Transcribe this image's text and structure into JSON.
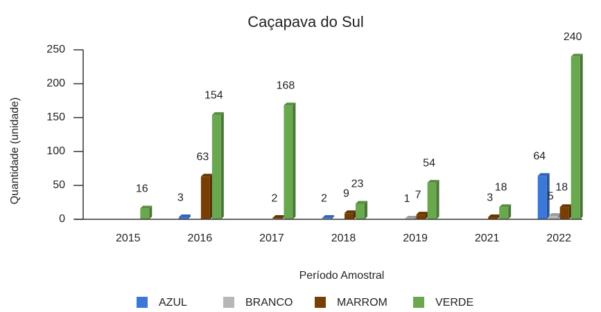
{
  "chart_data": {
    "type": "bar",
    "title": "Caçapava do Sul",
    "x_label": "Período Amostral",
    "y_label": "Quantidade (unidade)",
    "categories": [
      "2015",
      "2016",
      "2017",
      "2018",
      "2019",
      "2021",
      "2022"
    ],
    "series": [
      {
        "name": "AZUL",
        "color": "#3c78d8",
        "values": [
          null,
          3,
          null,
          2,
          null,
          null,
          64
        ]
      },
      {
        "name": "BRANCO",
        "color": "#b7b7b7",
        "values": [
          null,
          null,
          null,
          null,
          1,
          null,
          5
        ]
      },
      {
        "name": "MARROM",
        "color": "#783f04",
        "values": [
          null,
          63,
          2,
          9,
          7,
          3,
          18
        ]
      },
      {
        "name": "VERDE",
        "color": "#6aa84f",
        "values": [
          16,
          154,
          168,
          23,
          54,
          18,
          240
        ]
      }
    ],
    "ylim": [
      0,
      250
    ],
    "yticks": [
      0,
      50,
      100,
      150,
      200,
      250
    ],
    "grid": false,
    "legend": "bottom"
  }
}
